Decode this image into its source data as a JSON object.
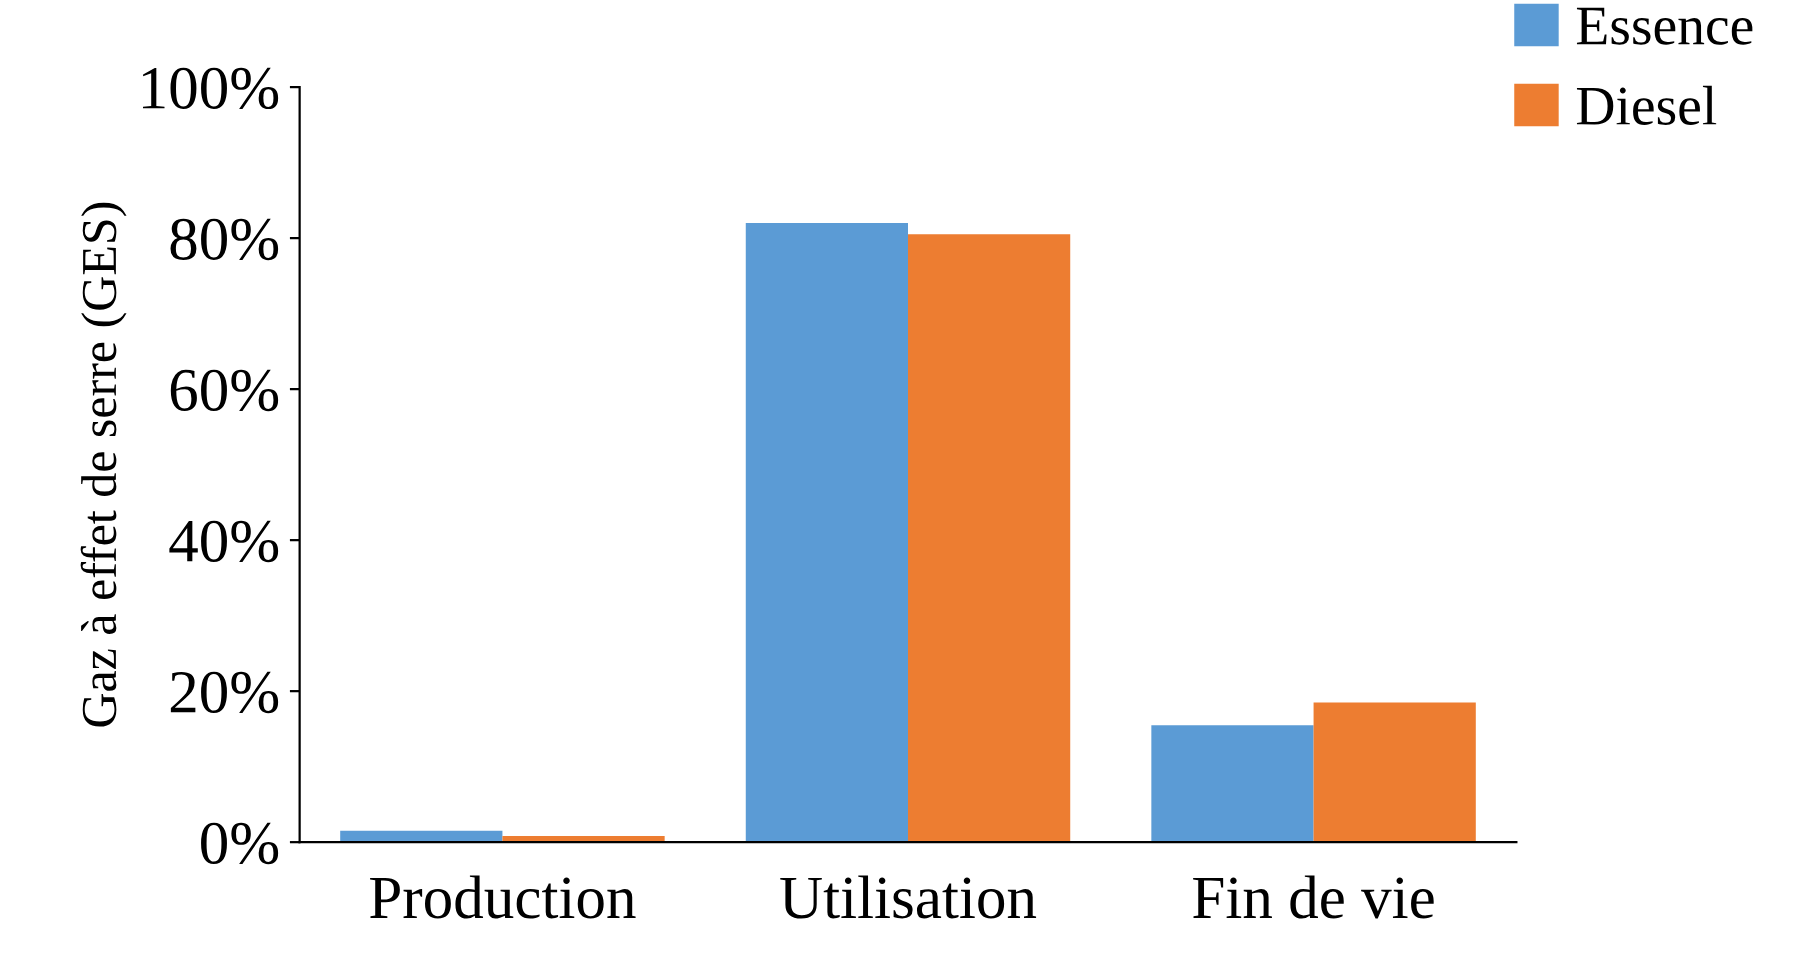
{
  "chart_data": {
    "type": "bar",
    "ylabel": "Gaz à effet de serre (GES)",
    "categories": [
      "Production",
      "Utilisation",
      "Fin de vie"
    ],
    "series": [
      {
        "name": "Essence",
        "color": "#5b9bd5",
        "values": [
          1.5,
          82,
          15.5
        ]
      },
      {
        "name": "Diesel",
        "color": "#ed7d31",
        "values": [
          0.8,
          80.5,
          18.5
        ]
      }
    ],
    "ylim": [
      0,
      100
    ],
    "yticks": [
      {
        "value": 0,
        "label": "0%"
      },
      {
        "value": 20,
        "label": "20%"
      },
      {
        "value": 40,
        "label": "40%"
      },
      {
        "value": 60,
        "label": "60%"
      },
      {
        "value": 80,
        "label": "80%"
      },
      {
        "value": 100,
        "label": "100%"
      }
    ],
    "grid": false,
    "legend": "top right"
  }
}
